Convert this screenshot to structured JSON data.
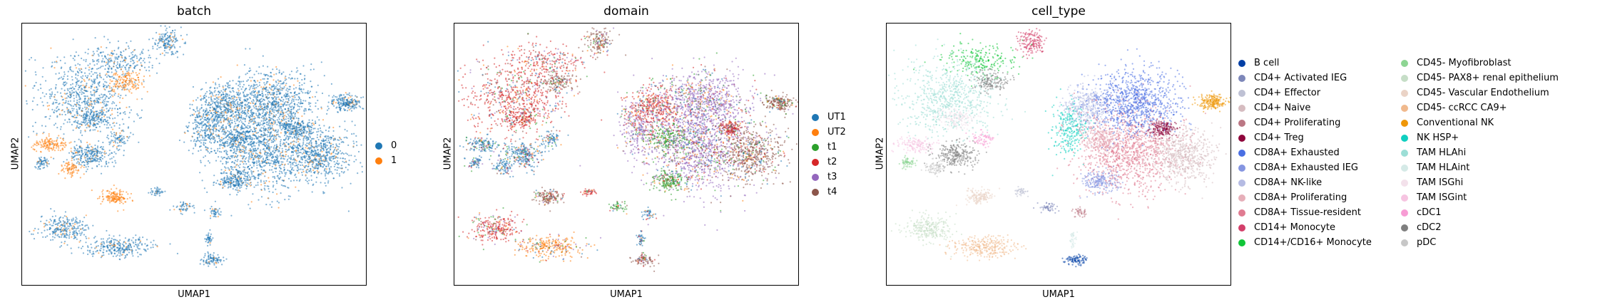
{
  "chart_data": [
    {
      "type": "scatter",
      "title": "batch",
      "xlabel": "UMAP1",
      "ylabel": "UMAP2",
      "grid": false,
      "legend_placement": "right",
      "series": [
        {
          "name": "0",
          "color": "#1f77b4"
        },
        {
          "name": "1",
          "color": "#ff7f0e"
        }
      ]
    },
    {
      "type": "scatter",
      "title": "domain",
      "xlabel": "UMAP1",
      "ylabel": "UMAP2",
      "grid": false,
      "legend_placement": "right",
      "series": [
        {
          "name": "UT1",
          "color": "#1f77b4"
        },
        {
          "name": "UT2",
          "color": "#ff7f0e"
        },
        {
          "name": "t1",
          "color": "#2ca02c"
        },
        {
          "name": "t2",
          "color": "#d62728"
        },
        {
          "name": "t3",
          "color": "#9467bd"
        },
        {
          "name": "t4",
          "color": "#8c564b"
        }
      ]
    },
    {
      "type": "scatter",
      "title": "cell_type",
      "xlabel": "UMAP1",
      "ylabel": "UMAP2",
      "grid": false,
      "legend_placement": "right",
      "series": [
        {
          "name": "B cell",
          "color": "#023fa5"
        },
        {
          "name": "CD4+ Activated IEG",
          "color": "#7d87b9"
        },
        {
          "name": "CD4+ Effector",
          "color": "#bec1d4"
        },
        {
          "name": "CD4+ Naive",
          "color": "#d6bcc0"
        },
        {
          "name": "CD4+ Proliferating",
          "color": "#bb7784"
        },
        {
          "name": "CD4+ Treg",
          "color": "#8e063b"
        },
        {
          "name": "CD8A+ Exhausted",
          "color": "#4a6fe3"
        },
        {
          "name": "CD8A+ Exhausted IEG",
          "color": "#8595e1"
        },
        {
          "name": "CD8A+ NK-like",
          "color": "#b5bbe3"
        },
        {
          "name": "CD8A+ Proliferating",
          "color": "#e6afb9"
        },
        {
          "name": "CD8A+ Tissue-resident",
          "color": "#e07b91"
        },
        {
          "name": "CD14+ Monocyte",
          "color": "#d33f6a"
        },
        {
          "name": "CD14+/CD16+ Monocyte",
          "color": "#11c638"
        },
        {
          "name": "CD45- Myofibroblast",
          "color": "#8dd593"
        },
        {
          "name": "CD45- PAX8+ renal epithelium",
          "color": "#c6dec7"
        },
        {
          "name": "CD45- Vascular Endothelium",
          "color": "#ead3c6"
        },
        {
          "name": "CD45- ccRCC CA9+",
          "color": "#f0b98d"
        },
        {
          "name": "Conventional NK",
          "color": "#ef9708"
        },
        {
          "name": "NK HSP+",
          "color": "#0fcfc0"
        },
        {
          "name": "TAM HLAhi",
          "color": "#9cded6"
        },
        {
          "name": "TAM HLAint",
          "color": "#d5eae7"
        },
        {
          "name": "TAM ISGhi",
          "color": "#f3e1eb"
        },
        {
          "name": "TAM ISGint",
          "color": "#f6c4e1"
        },
        {
          "name": "cDC1",
          "color": "#f79cd4"
        },
        {
          "name": "cDC2",
          "color": "#7f7f7f"
        },
        {
          "name": "pDC",
          "color": "#c7c7c7"
        }
      ]
    }
  ]
}
